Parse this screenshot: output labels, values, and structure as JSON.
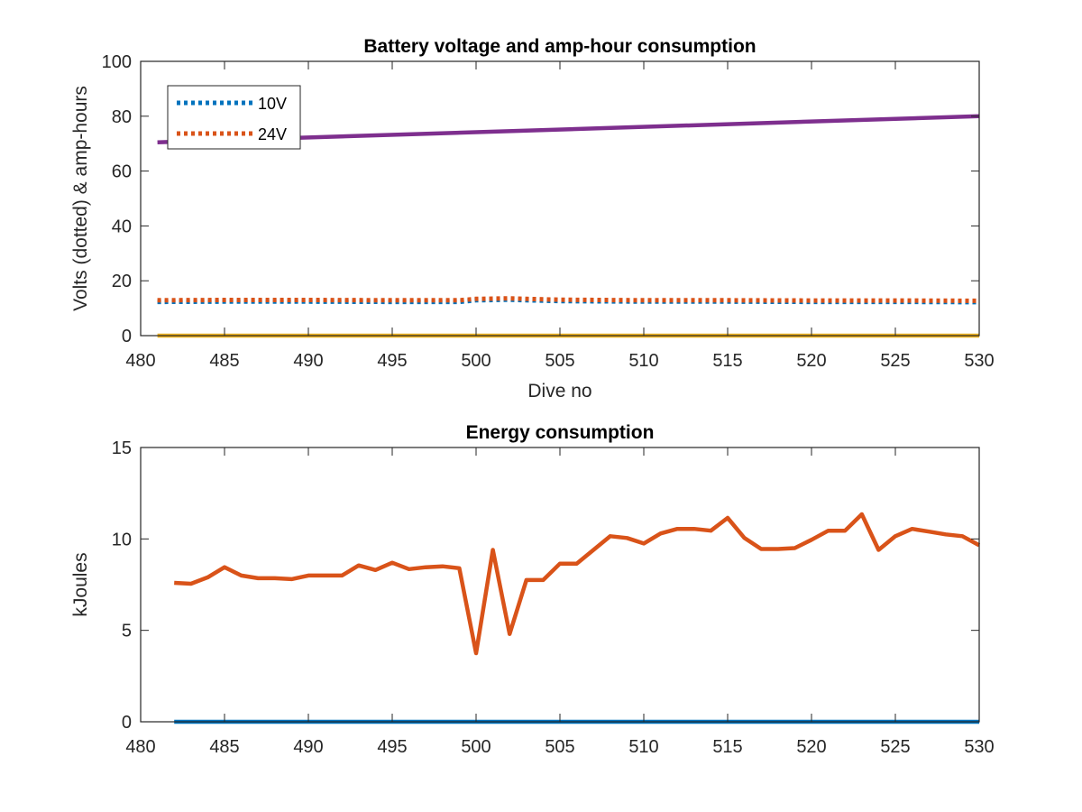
{
  "chart_data": [
    {
      "type": "line",
      "title": "Battery voltage and amp-hour consumption",
      "xlabel": "Dive no",
      "ylabel": "Volts (dotted) & amp-hours",
      "xlim": [
        480,
        530
      ],
      "ylim": [
        0,
        100
      ],
      "xticks": [
        480,
        485,
        490,
        495,
        500,
        505,
        510,
        515,
        520,
        525,
        530
      ],
      "yticks": [
        0,
        20,
        40,
        60,
        80,
        100
      ],
      "grid": false,
      "legend": "top-left",
      "series": [
        {
          "name": "10V",
          "style": "dotted",
          "color": "#0072BD",
          "x": [
            481,
            485,
            490,
            495,
            499,
            500,
            502,
            503,
            505,
            510,
            515,
            520,
            525,
            530
          ],
          "y": [
            12.3,
            12.4,
            12.4,
            12.3,
            12.3,
            12.9,
            13.1,
            12.9,
            12.6,
            12.4,
            12.4,
            12.3,
            12.3,
            12.2
          ]
        },
        {
          "name": "24V",
          "style": "dotted",
          "color": "#D95319",
          "x": [
            481,
            485,
            490,
            495,
            499,
            500,
            502,
            503,
            505,
            510,
            515,
            520,
            525,
            530
          ],
          "y": [
            12.9,
            13.0,
            13.0,
            12.9,
            12.9,
            13.4,
            13.6,
            13.4,
            13.1,
            12.9,
            12.9,
            12.8,
            12.8,
            12.7
          ]
        },
        {
          "style": "solid",
          "color": "#EDB120",
          "x": [
            481,
            530
          ],
          "y": [
            0,
            0
          ]
        },
        {
          "style": "solid",
          "color": "#7E2F8E",
          "x": [
            481,
            530
          ],
          "y": [
            70.5,
            80
          ]
        }
      ]
    },
    {
      "type": "line",
      "title": "Energy consumption",
      "xlabel": "",
      "ylabel": "kJoules",
      "xlim": [
        480,
        530
      ],
      "ylim": [
        0,
        15
      ],
      "xticks": [
        480,
        485,
        490,
        495,
        500,
        505,
        510,
        515,
        520,
        525,
        530
      ],
      "yticks": [
        0,
        5,
        10,
        15
      ],
      "grid": false,
      "series": [
        {
          "style": "solid",
          "color": "#0072BD",
          "x": [
            482,
            530
          ],
          "y": [
            0,
            0
          ]
        },
        {
          "style": "solid",
          "color": "#D95319",
          "x": [
            482,
            483,
            484,
            485,
            486,
            487,
            488,
            489,
            490,
            491,
            492,
            493,
            494,
            495,
            496,
            497,
            498,
            499,
            500,
            501,
            502,
            503,
            504,
            505,
            506,
            507,
            508,
            509,
            510,
            511,
            512,
            513,
            514,
            515,
            516,
            517,
            518,
            519,
            520,
            521,
            522,
            523,
            524,
            525,
            526,
            527,
            528,
            529,
            530
          ],
          "y": [
            7.6,
            7.55,
            7.9,
            8.45,
            8.0,
            7.85,
            7.85,
            7.8,
            8.0,
            8.0,
            8.0,
            8.55,
            8.3,
            8.7,
            8.35,
            8.45,
            8.5,
            8.4,
            3.75,
            9.4,
            4.8,
            7.75,
            7.75,
            8.65,
            8.65,
            9.4,
            10.15,
            10.05,
            9.75,
            10.3,
            10.55,
            10.55,
            10.45,
            11.15,
            10.05,
            9.45,
            9.45,
            9.5,
            9.95,
            10.45,
            10.45,
            11.35,
            9.4,
            10.15,
            10.55,
            10.4,
            10.25,
            10.15,
            9.65
          ]
        }
      ]
    }
  ]
}
